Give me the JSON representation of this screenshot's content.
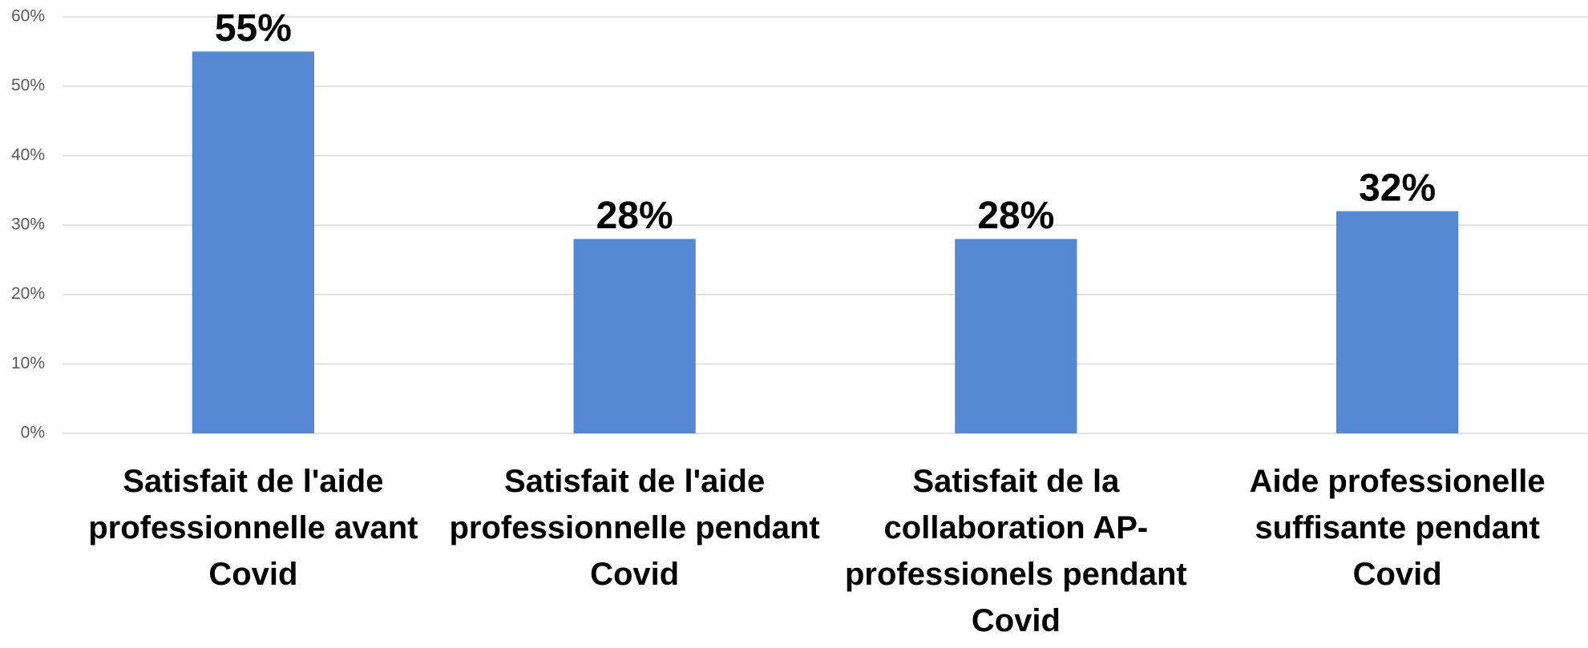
{
  "chart_data": {
    "type": "bar",
    "categories": [
      "Satisfait de l'aide professionnelle avant Covid",
      "Satisfait de l'aide professionnelle pendant Covid",
      "Satisfait de la collaboration AP-professionels pendant Covid",
      "Aide professionelle suffisante pendant Covid"
    ],
    "values": [
      55,
      28,
      28,
      32
    ],
    "value_labels": [
      "55%",
      "28%",
      "28%",
      "32%"
    ],
    "color": "#5588d3",
    "ylim": [
      0,
      60
    ],
    "yticks": [
      {
        "value": 0,
        "label": "0%"
      },
      {
        "value": 10,
        "label": "10%"
      },
      {
        "value": 20,
        "label": "20%"
      },
      {
        "value": 30,
        "label": "30%"
      },
      {
        "value": 40,
        "label": "40%"
      },
      {
        "value": 50,
        "label": "50%"
      },
      {
        "value": 60,
        "label": "60%"
      }
    ],
    "grid": true
  }
}
